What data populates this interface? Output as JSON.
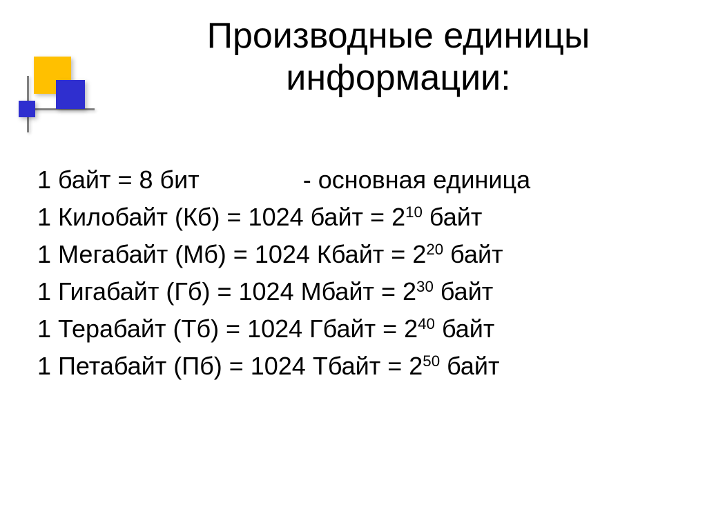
{
  "title": "Производные единицы информации:",
  "decor": {
    "yellow": "#ffc000",
    "blue": "#2f2fcf",
    "line": "#808080"
  },
  "lines": [
    {
      "prefix": "1 байт = 8 бит",
      "mid_gap": true,
      "mid": "-  основная единица",
      "exp": null,
      "suffix": ""
    },
    {
      "prefix": "1 Килобайт (Кб) = 1024 байт = 2",
      "exp": "10",
      "suffix": " байт"
    },
    {
      "prefix": "1 Мегабайт (Мб) = 1024 Кбайт = 2",
      "exp": "20",
      "suffix": " байт"
    },
    {
      "prefix": "1 Гигабайт (Гб) = 1024 Мбайт = 2",
      "exp": "30",
      "suffix": " байт"
    },
    {
      "prefix": "1 Терабайт (Тб) = 1024 Гбайт = 2",
      "exp": "40",
      "suffix": " байт"
    },
    {
      "prefix": "1 Петабайт (Пб) = 1024 Тбайт = 2",
      "exp": "50",
      "suffix": " байт"
    }
  ],
  "typography": {
    "title_fontsize": 52,
    "body_fontsize": 36,
    "text_color": "#000000",
    "background": "#ffffff"
  }
}
